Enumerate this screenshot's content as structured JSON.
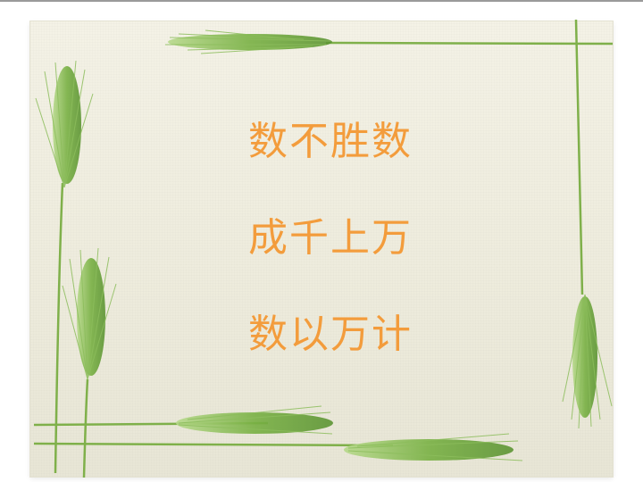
{
  "slide": {
    "phrases": [
      "数不胜数",
      "成千上万",
      "数以万计"
    ]
  },
  "colors": {
    "text": "#f39c3c",
    "background": "#f1efe2",
    "stem": "#7fb04a",
    "ear": "#8cc157"
  },
  "decorations": {
    "frame": "wheat-stalk-frame"
  }
}
